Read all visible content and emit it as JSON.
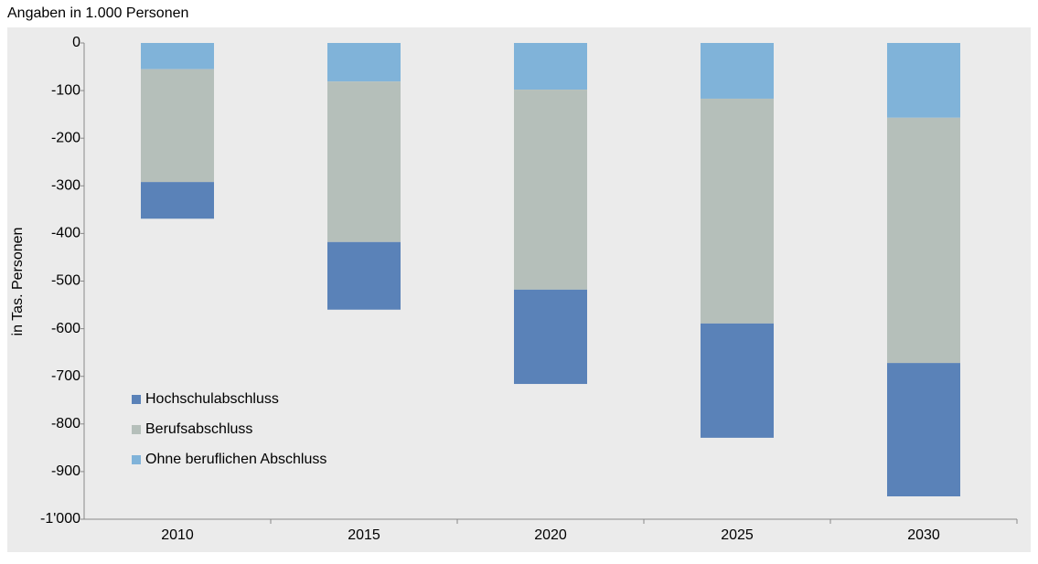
{
  "chart_data": {
    "type": "bar",
    "stacked": true,
    "title": "Angaben in 1.000 Personen",
    "ylabel": "in Tas. Personen",
    "categories": [
      "2010",
      "2015",
      "2020",
      "2025",
      "2030"
    ],
    "series": [
      {
        "name": "Hochschulabschluss",
        "color": "#5a82b8",
        "values": [
          -77,
          -142,
          -198,
          -240,
          -280
        ]
      },
      {
        "name": "Berufsabschluss",
        "color": "#b5bfba",
        "values": [
          -237,
          -337,
          -420,
          -472,
          -515
        ]
      },
      {
        "name": "Ohne beruflichen Abschluss",
        "color": "#80b3d9",
        "values": [
          -55,
          -81,
          -98,
          -117,
          -157
        ]
      }
    ],
    "ylim": [
      -1000,
      0
    ],
    "yticks": [
      0,
      -100,
      -200,
      -300,
      -400,
      -500,
      -600,
      -700,
      -800,
      -900,
      {
        "value": -1000,
        "label": "-1'000"
      }
    ],
    "legend": "lower left",
    "grid": false
  }
}
